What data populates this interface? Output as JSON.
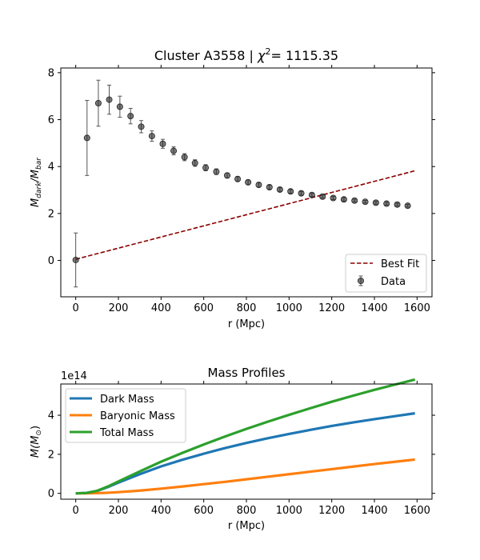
{
  "chart_data": [
    {
      "type": "scatter",
      "title": "Cluster A3558 | χ²= 1115.35",
      "title_parts": {
        "prefix": "Cluster A3558 | ",
        "chi": "χ",
        "sup": "2",
        "suffix": "= 1115.35"
      },
      "xlabel": "r (Mpc)",
      "ylabel": {
        "base": "M",
        "sub1": "dark",
        "sep": "/M",
        "sub2": "bar"
      },
      "xlim": [
        -70,
        1670
      ],
      "ylim": [
        -1.55,
        8.2
      ],
      "xticks": [
        0,
        200,
        400,
        600,
        800,
        1000,
        1200,
        1400,
        1600
      ],
      "yticks": [
        0,
        2,
        4,
        6,
        8
      ],
      "grid": false,
      "legend_position": "lower right",
      "series": [
        {
          "name": "Data",
          "kind": "errorbar",
          "color": "#4d4d4d",
          "x": [
            0,
            53,
            106,
            157,
            207,
            257,
            307,
            357,
            408,
            459,
            510,
            559,
            609,
            659,
            710,
            759,
            808,
            858,
            908,
            957,
            1007,
            1057,
            1107,
            1157,
            1207,
            1257,
            1307,
            1357,
            1407,
            1457,
            1507,
            1556
          ],
          "y": [
            0.02,
            5.22,
            6.7,
            6.85,
            6.55,
            6.15,
            5.7,
            5.3,
            4.97,
            4.67,
            4.4,
            4.15,
            3.95,
            3.78,
            3.62,
            3.47,
            3.33,
            3.22,
            3.12,
            3.02,
            2.94,
            2.86,
            2.79,
            2.72,
            2.66,
            2.6,
            2.55,
            2.5,
            2.46,
            2.42,
            2.38,
            2.33
          ],
          "yerr": [
            1.15,
            1.6,
            0.98,
            0.62,
            0.45,
            0.33,
            0.26,
            0.22,
            0.19,
            0.17,
            0.15,
            0.14,
            0.13,
            0.12,
            0.11,
            0.1,
            0.1,
            0.09,
            0.09,
            0.08,
            0.08,
            0.08,
            0.07,
            0.07,
            0.07,
            0.07,
            0.06,
            0.06,
            0.06,
            0.06,
            0.06,
            0.06
          ]
        },
        {
          "name": "Best Fit",
          "kind": "line",
          "style": "dashed",
          "color": "#8b0000",
          "x": [
            0,
            1590
          ],
          "y": [
            0.05,
            3.82
          ]
        }
      ]
    },
    {
      "type": "line",
      "title": "Mass Profiles",
      "xlabel": "r (Mpc)",
      "ylabel": {
        "base": "M(M",
        "sub": "⊙",
        "end": ")"
      },
      "offset_text": "1e14",
      "xlim": [
        -70,
        1670
      ],
      "ylim": [
        -0.3,
        5.6
      ],
      "xticks": [
        0,
        200,
        400,
        600,
        800,
        1000,
        1200,
        1400,
        1600
      ],
      "yticks": [
        0,
        2,
        4
      ],
      "grid": false,
      "legend_position": "upper left",
      "series": [
        {
          "name": "Dark Mass",
          "color": "#1f77b4",
          "x": [
            0,
            50,
            100,
            150,
            200,
            300,
            400,
            500,
            600,
            700,
            800,
            900,
            1000,
            1100,
            1200,
            1300,
            1400,
            1500,
            1590
          ],
          "y": [
            0.0,
            0.02,
            0.12,
            0.32,
            0.55,
            0.98,
            1.38,
            1.72,
            2.03,
            2.32,
            2.58,
            2.82,
            3.04,
            3.25,
            3.45,
            3.63,
            3.8,
            3.96,
            4.1
          ]
        },
        {
          "name": "Baryonic Mass",
          "color": "#ff7f0e",
          "x": [
            0,
            50,
            100,
            150,
            200,
            300,
            400,
            500,
            600,
            700,
            800,
            900,
            1000,
            1100,
            1200,
            1300,
            1400,
            1500,
            1590
          ],
          "y": [
            0.0,
            0.0,
            0.01,
            0.03,
            0.06,
            0.14,
            0.24,
            0.35,
            0.47,
            0.59,
            0.72,
            0.85,
            0.98,
            1.11,
            1.24,
            1.37,
            1.5,
            1.62,
            1.73
          ]
        },
        {
          "name": "Total Mass",
          "color": "#2ca02c",
          "x": [
            0,
            50,
            100,
            150,
            200,
            300,
            400,
            500,
            600,
            700,
            800,
            900,
            1000,
            1100,
            1200,
            1300,
            1400,
            1500,
            1590
          ],
          "y": [
            0.0,
            0.02,
            0.13,
            0.35,
            0.61,
            1.12,
            1.62,
            2.07,
            2.5,
            2.91,
            3.3,
            3.67,
            4.02,
            4.36,
            4.69,
            5.0,
            5.3,
            5.58,
            5.83
          ]
        }
      ]
    }
  ]
}
